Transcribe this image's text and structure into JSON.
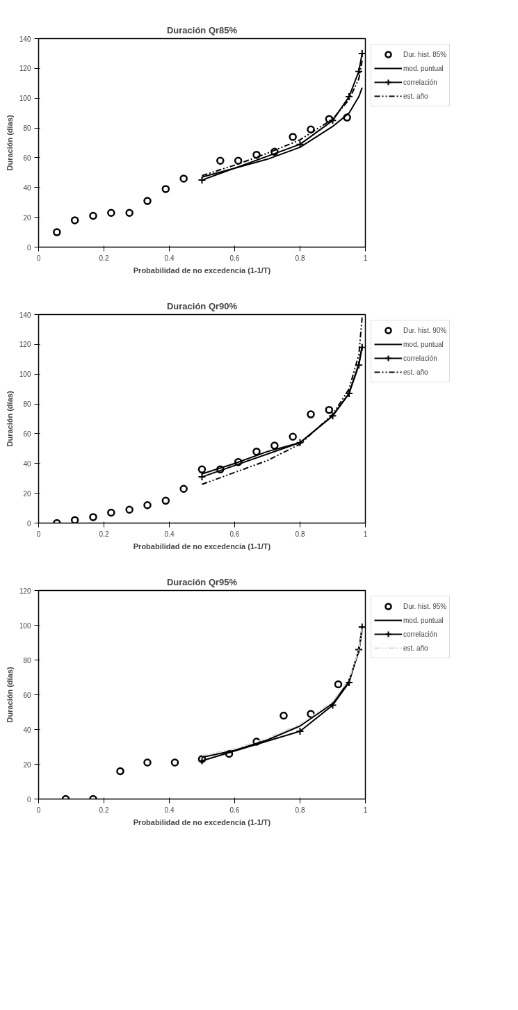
{
  "chart_data": [
    {
      "type": "scatter",
      "title": "Duración Qr85%",
      "xlabel": "Probabilidad de no excedencia (1-1/T)",
      "ylabel": "Duración (días)",
      "xlim": [
        0,
        1
      ],
      "ylim": [
        0,
        140
      ],
      "xticks": [
        0,
        0.2,
        0.4,
        0.6,
        0.8,
        1
      ],
      "yticks": [
        0,
        20,
        40,
        60,
        80,
        100,
        120,
        140
      ],
      "grid": false,
      "legend": "right",
      "series": [
        {
          "name": "Dur. hist. 85%",
          "marker": "circle",
          "color": "#000000",
          "x": [
            0.056,
            0.111,
            0.167,
            0.222,
            0.278,
            0.333,
            0.389,
            0.444,
            0.556,
            0.611,
            0.667,
            0.722,
            0.778,
            0.833,
            0.889,
            0.944
          ],
          "values": [
            10,
            18,
            21,
            23,
            23,
            31,
            39,
            46,
            58,
            58,
            62,
            64,
            74,
            79,
            86,
            87
          ]
        },
        {
          "name": "mod. puntual",
          "type": "line",
          "line_style": "solid",
          "marker": "none",
          "color": "#000000",
          "x": [
            0.5,
            0.6,
            0.7,
            0.8,
            0.9,
            0.95,
            0.98,
            0.99
          ],
          "values": [
            47,
            53,
            59,
            67,
            81,
            90,
            101,
            107
          ]
        },
        {
          "name": "correlación",
          "type": "line",
          "line_style": "solid",
          "marker": "cross",
          "color": "#000000",
          "x": [
            0.5,
            0.8,
            0.9,
            0.95,
            0.98,
            0.99
          ],
          "values": [
            45,
            69,
            85,
            101,
            118,
            130
          ]
        },
        {
          "name": "est. año",
          "type": "line",
          "line_style": "dashed",
          "marker": "none",
          "color": "#000000",
          "x": [
            0.5,
            0.6,
            0.7,
            0.8,
            0.9,
            0.95,
            0.98,
            0.99
          ],
          "values": [
            48,
            55,
            63,
            72,
            86,
            99,
            113,
            125
          ]
        }
      ]
    },
    {
      "type": "scatter",
      "title": "Duración Qr90%",
      "xlabel": "Probabilidad de no excedencia (1-1/T)",
      "ylabel": "Duración (días)",
      "xlim": [
        0,
        1
      ],
      "ylim": [
        0,
        140
      ],
      "xticks": [
        0,
        0.2,
        0.4,
        0.6,
        0.8,
        1
      ],
      "yticks": [
        0,
        20,
        40,
        60,
        80,
        100,
        120,
        140
      ],
      "grid": false,
      "legend": "right",
      "series": [
        {
          "name": "Dur. hist. 90%",
          "marker": "circle",
          "color": "#000000",
          "x": [
            0.056,
            0.111,
            0.167,
            0.222,
            0.278,
            0.333,
            0.389,
            0.444,
            0.5,
            0.556,
            0.611,
            0.667,
            0.722,
            0.778,
            0.833,
            0.889
          ],
          "values": [
            0,
            2,
            4,
            7,
            9,
            12,
            15,
            23,
            36,
            36,
            41,
            48,
            52,
            58,
            73,
            76
          ]
        },
        {
          "name": "mod. puntual",
          "type": "line",
          "line_style": "solid",
          "marker": "none",
          "color": "#000000",
          "x": [
            0.5,
            0.6,
            0.7,
            0.8,
            0.9,
            0.95,
            0.98,
            0.99
          ],
          "values": [
            33,
            40,
            48,
            54,
            72,
            87,
            107,
            119
          ]
        },
        {
          "name": "correlación",
          "type": "line",
          "line_style": "solid",
          "marker": "cross",
          "color": "#000000",
          "x": [
            0.5,
            0.8,
            0.9,
            0.95,
            0.98,
            0.99
          ],
          "values": [
            31,
            54,
            72,
            87,
            106,
            118
          ]
        },
        {
          "name": "est. año",
          "type": "line",
          "line_style": "dashed",
          "marker": "none",
          "color": "#000000",
          "x": [
            0.5,
            0.6,
            0.7,
            0.8,
            0.9,
            0.95,
            0.98,
            0.99
          ],
          "values": [
            26,
            34,
            42,
            53,
            73,
            90,
            113,
            138
          ]
        }
      ]
    },
    {
      "type": "scatter",
      "title": "Duración Qr95%",
      "xlabel": "Probabilidad de no excedencia (1-1/T)",
      "ylabel": "Duración (días)",
      "xlim": [
        0,
        1
      ],
      "ylim": [
        0,
        120
      ],
      "xticks": [
        0,
        0.2,
        0.4,
        0.6,
        0.8,
        1
      ],
      "yticks": [
        0,
        20,
        40,
        60,
        80,
        100,
        120
      ],
      "grid": false,
      "legend": "right",
      "series": [
        {
          "name": "Dur. hist. 95%",
          "marker": "circle",
          "color": "#000000",
          "x": [
            0.083,
            0.167,
            0.25,
            0.333,
            0.417,
            0.5,
            0.583,
            0.667,
            0.75,
            0.833,
            0.917
          ],
          "values": [
            0,
            0,
            16,
            21,
            21,
            23,
            26,
            33,
            48,
            49,
            66
          ]
        },
        {
          "name": "mod. puntual",
          "type": "line",
          "line_style": "solid",
          "marker": "none",
          "color": "#000000",
          "x": [
            0.5,
            0.6,
            0.7,
            0.8,
            0.9,
            0.95,
            0.98,
            0.99
          ],
          "values": [
            24,
            28,
            34,
            42,
            55,
            68,
            85,
            97
          ]
        },
        {
          "name": "correlación",
          "type": "line",
          "line_style": "solid",
          "marker": "cross",
          "color": "#000000",
          "x": [
            0.5,
            0.8,
            0.9,
            0.95,
            0.98,
            0.99
          ],
          "values": [
            22,
            39,
            54,
            67,
            86,
            99
          ]
        },
        {
          "name": "est. año",
          "type": "line",
          "line_style": "dashed",
          "marker": "none",
          "color": "#d9d9d9",
          "x": [
            0.5,
            0.6,
            0.7,
            0.8,
            0.9,
            0.95,
            0.98,
            0.99
          ],
          "values": [
            25,
            29,
            35,
            43,
            56,
            69,
            86,
            98
          ]
        }
      ]
    }
  ]
}
